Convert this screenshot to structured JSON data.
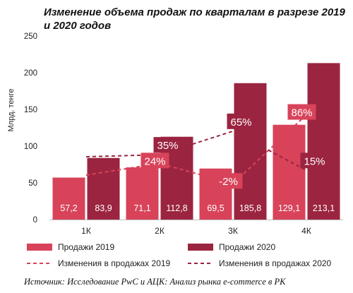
{
  "chart_data": {
    "type": "bar",
    "title": "Изменение объема продаж по кварталам в разрезе 2019 и 2020 годов",
    "ylabel": "Млрд. тенге",
    "xlabel": "",
    "ylim": [
      0,
      250
    ],
    "yticks": [
      "0",
      "50",
      "100",
      "150",
      "200",
      "250"
    ],
    "grid": false,
    "legend_position": "bottom",
    "categories": [
      "1К",
      "2К",
      "3К",
      "4К"
    ],
    "series": [
      {
        "name": "Продажи 2019",
        "color": "#d8435a",
        "values": [
          57.2,
          71.1,
          69.5,
          129.1
        ],
        "labels": [
          "57,2",
          "71,1",
          "69,5",
          "129,1"
        ]
      },
      {
        "name": "Продажи 2020",
        "color": "#9b2440",
        "values": [
          83.9,
          112.8,
          185.8,
          213.1
        ],
        "labels": [
          "83,9",
          "112,8",
          "185,8",
          "213,1"
        ]
      }
    ],
    "change_lines": [
      {
        "name": "Изменения  в продажах 2019",
        "color": "#d8435a",
        "values": [
          null,
          24,
          -2,
          86
        ],
        "labels": [
          "",
          "24%",
          "-2%",
          "86%"
        ]
      },
      {
        "name": "Изменения  в продажах 2020",
        "color": "#9b2440",
        "values": [
          null,
          35,
          65,
          15
        ],
        "labels": [
          "",
          "35%",
          "65%",
          "15%"
        ]
      }
    ]
  },
  "source": "Источник: Исследование PwC и АЦК: Анализ рынка e-commerce в РК"
}
